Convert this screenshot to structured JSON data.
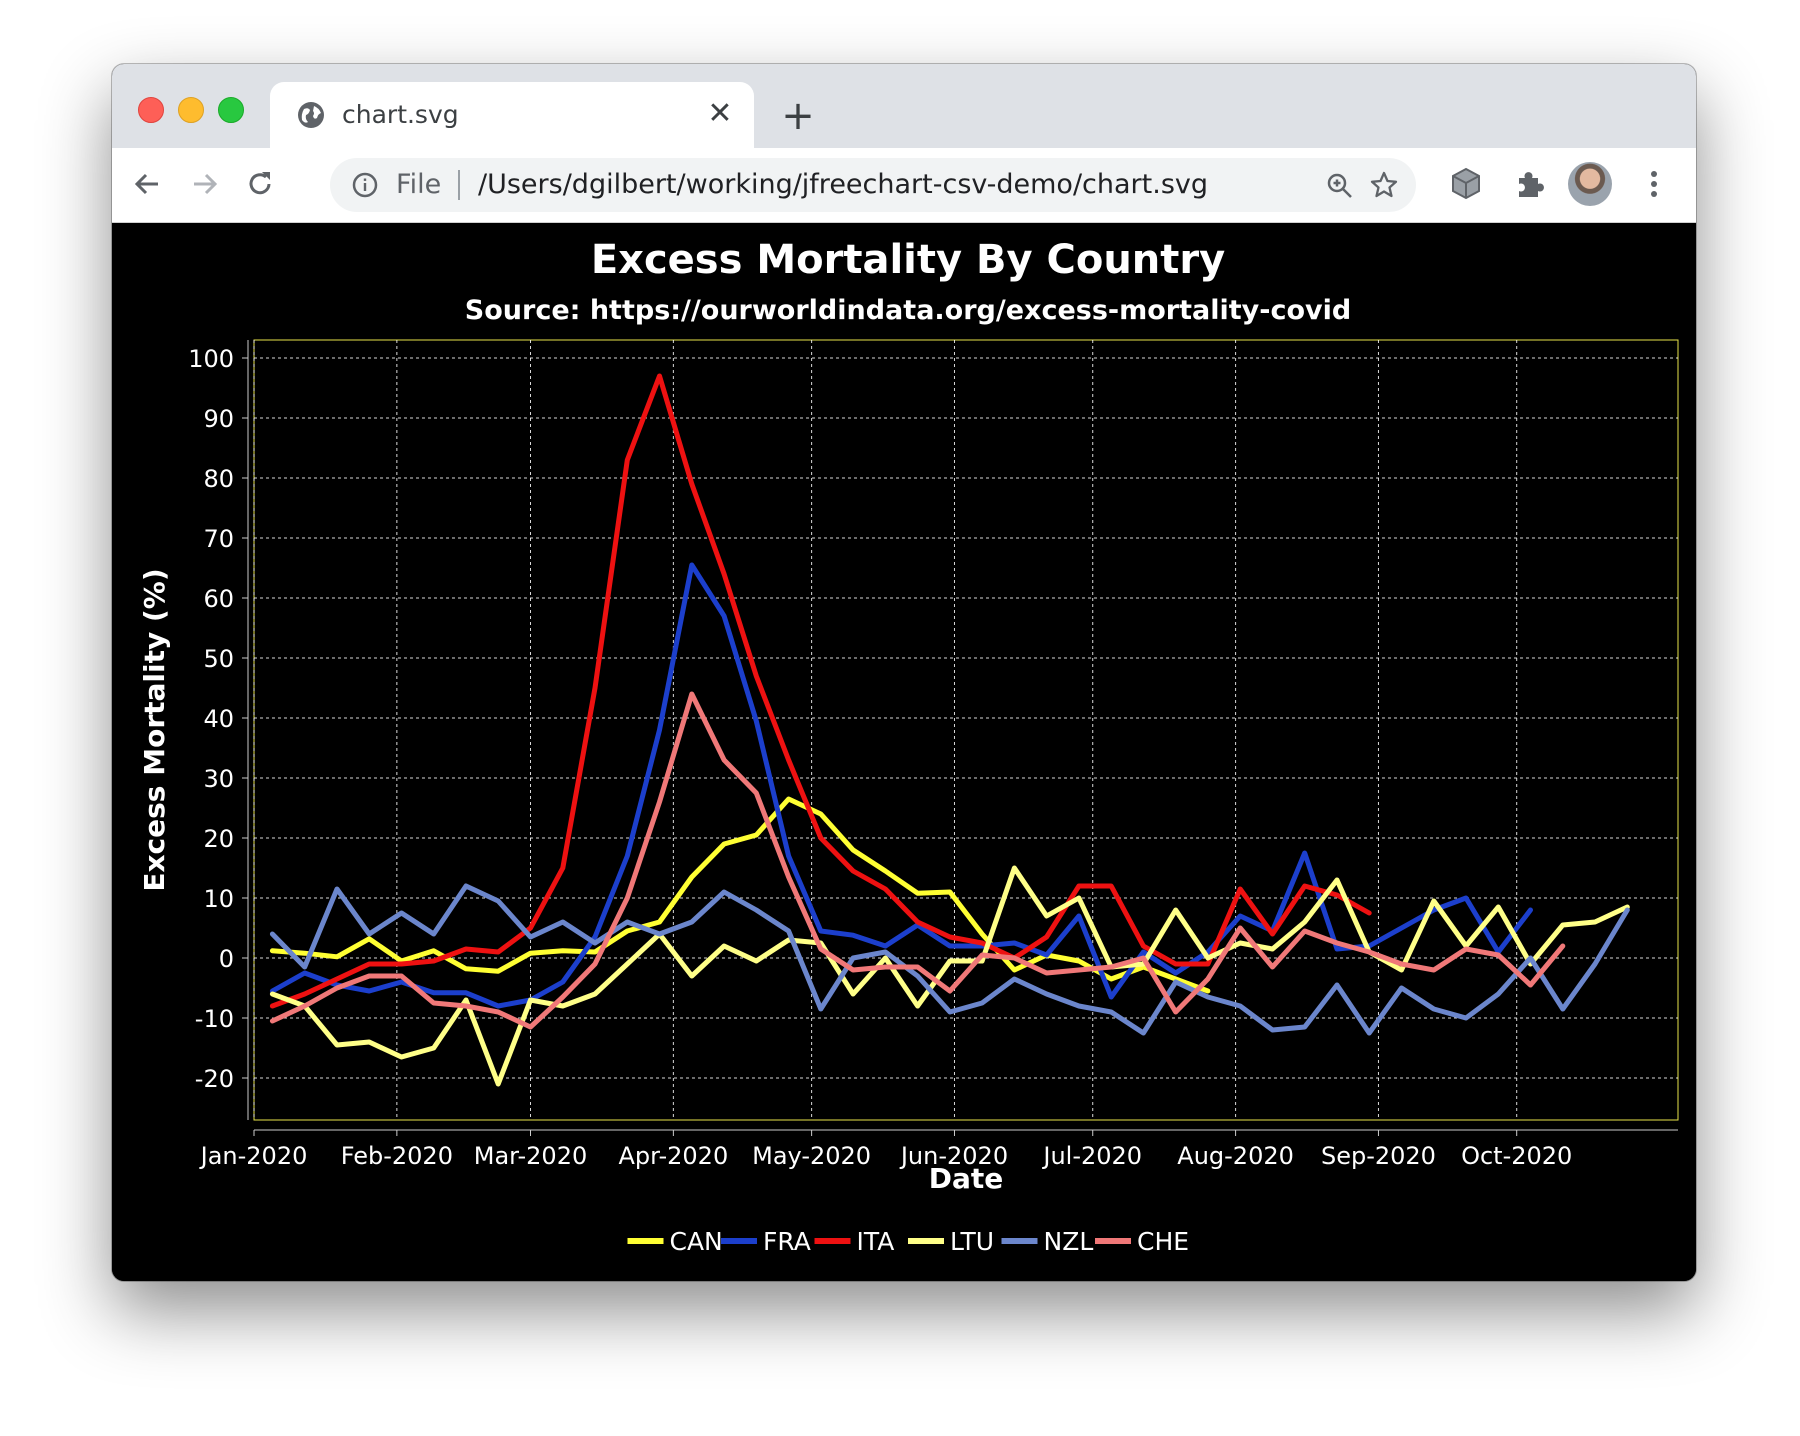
{
  "browser": {
    "tab_title": "chart.svg",
    "tab_close": "✕",
    "new_tab": "+",
    "file_label": "File",
    "url": "/Users/dgilbert/working/jfreechart-csv-demo/chart.svg",
    "icons": [
      "globe-icon",
      "back-icon",
      "forward-icon",
      "reload-icon",
      "info-icon",
      "zoom-icon",
      "star-icon",
      "cube-icon",
      "puzzle-icon",
      "avatar",
      "menu-icon"
    ]
  },
  "chart_data": {
    "type": "line",
    "title": "Excess Mortality By Country",
    "subtitle": "Source: https://ourworldindata.org/excess-mortality-covid",
    "xlabel": "Date",
    "ylabel": "Excess Mortality (%)",
    "ylim": [
      -27,
      103
    ],
    "yticks": [
      -20,
      -10,
      0,
      10,
      20,
      30,
      40,
      50,
      60,
      70,
      80,
      90,
      100
    ],
    "xlim": [
      "2020-01-01",
      "2020-11-05"
    ],
    "xticks": [
      {
        "date": "2020-01-01",
        "label": "Jan-2020"
      },
      {
        "date": "2020-02-01",
        "label": "Feb-2020"
      },
      {
        "date": "2020-03-01",
        "label": "Mar-2020"
      },
      {
        "date": "2020-04-01",
        "label": "Apr-2020"
      },
      {
        "date": "2020-05-01",
        "label": "May-2020"
      },
      {
        "date": "2020-06-01",
        "label": "Jun-2020"
      },
      {
        "date": "2020-07-01",
        "label": "Jul-2020"
      },
      {
        "date": "2020-08-01",
        "label": "Aug-2020"
      },
      {
        "date": "2020-09-01",
        "label": "Sep-2020"
      },
      {
        "date": "2020-10-01",
        "label": "Oct-2020"
      }
    ],
    "grid": true,
    "legend_position": "bottom",
    "background": "#000000",
    "gridline_color": "#ffffff",
    "plot_border_color": "#e8e34a",
    "series": [
      {
        "name": "CAN",
        "color": "#ffff33",
        "x": [
          "2020-01-05",
          "2020-01-12",
          "2020-01-19",
          "2020-01-26",
          "2020-02-02",
          "2020-02-09",
          "2020-02-16",
          "2020-02-23",
          "2020-03-01",
          "2020-03-08",
          "2020-03-15",
          "2020-03-22",
          "2020-03-29",
          "2020-04-05",
          "2020-04-12",
          "2020-04-19",
          "2020-04-26",
          "2020-05-03",
          "2020-05-10",
          "2020-05-17",
          "2020-05-24",
          "2020-05-31",
          "2020-06-07",
          "2020-06-14",
          "2020-06-21",
          "2020-06-28",
          "2020-07-05",
          "2020-07-12",
          "2020-07-19",
          "2020-07-26"
        ],
        "y": [
          1.2,
          0.8,
          0.2,
          3.2,
          -0.5,
          1.2,
          -1.8,
          -2.2,
          0.8,
          1.2,
          1.0,
          4.5,
          6.0,
          13.5,
          19.0,
          20.5,
          26.5,
          24.0,
          18.0,
          14.5,
          10.8,
          11.0,
          4.0,
          -2.0,
          0.5,
          -0.5,
          -3.5,
          -1.5,
          -3.5,
          -5.5
        ]
      },
      {
        "name": "FRA",
        "color": "#1c3fcc",
        "x": [
          "2020-01-05",
          "2020-01-12",
          "2020-01-19",
          "2020-01-26",
          "2020-02-02",
          "2020-02-09",
          "2020-02-16",
          "2020-02-23",
          "2020-03-01",
          "2020-03-08",
          "2020-03-15",
          "2020-03-22",
          "2020-03-29",
          "2020-04-05",
          "2020-04-12",
          "2020-04-19",
          "2020-04-26",
          "2020-05-03",
          "2020-05-10",
          "2020-05-17",
          "2020-05-24",
          "2020-05-31",
          "2020-06-07",
          "2020-06-14",
          "2020-06-21",
          "2020-06-28",
          "2020-07-05",
          "2020-07-12",
          "2020-07-19",
          "2020-07-26",
          "2020-08-02",
          "2020-08-09",
          "2020-08-16",
          "2020-08-23",
          "2020-08-30",
          "2020-09-06",
          "2020-09-13",
          "2020-09-20",
          "2020-09-27",
          "2020-10-04"
        ],
        "y": [
          -5.5,
          -2.5,
          -4.5,
          -5.5,
          -4.0,
          -5.8,
          -5.8,
          -8.0,
          -7.0,
          -4.0,
          3.5,
          17.0,
          38.0,
          65.5,
          57.0,
          39.5,
          17.0,
          4.5,
          3.8,
          2.0,
          5.5,
          2.0,
          2.0,
          2.5,
          0.5,
          7.0,
          -6.5,
          1.0,
          -2.5,
          1.0,
          7.0,
          4.5,
          17.5,
          1.5,
          2.0,
          5.0,
          8.0,
          10.0,
          1.0,
          8.0
        ]
      },
      {
        "name": "ITA",
        "color": "#ee1111",
        "x": [
          "2020-01-05",
          "2020-01-12",
          "2020-01-19",
          "2020-01-26",
          "2020-02-02",
          "2020-02-09",
          "2020-02-16",
          "2020-02-23",
          "2020-03-01",
          "2020-03-08",
          "2020-03-15",
          "2020-03-22",
          "2020-03-29",
          "2020-04-05",
          "2020-04-12",
          "2020-04-19",
          "2020-04-26",
          "2020-05-03",
          "2020-05-10",
          "2020-05-17",
          "2020-05-24",
          "2020-05-31",
          "2020-06-07",
          "2020-06-14",
          "2020-06-21",
          "2020-06-28",
          "2020-07-05",
          "2020-07-12",
          "2020-07-19",
          "2020-07-26",
          "2020-08-02",
          "2020-08-09",
          "2020-08-16",
          "2020-08-23",
          "2020-08-30"
        ],
        "y": [
          -8.0,
          -6.0,
          -3.5,
          -1.0,
          -1.0,
          -0.5,
          1.5,
          1.0,
          5.0,
          15.0,
          45.0,
          83.0,
          97.0,
          79.0,
          64.0,
          47.0,
          33.0,
          20.0,
          14.5,
          11.5,
          6.0,
          3.5,
          2.5,
          0.0,
          3.5,
          12.0,
          12.0,
          2.0,
          -1.0,
          -1.0,
          11.5,
          4.0,
          12.0,
          10.5,
          7.5
        ]
      },
      {
        "name": "LTU",
        "color": "#ffff88",
        "x": [
          "2020-01-05",
          "2020-01-12",
          "2020-01-19",
          "2020-01-26",
          "2020-02-02",
          "2020-02-09",
          "2020-02-16",
          "2020-02-23",
          "2020-03-01",
          "2020-03-08",
          "2020-03-15",
          "2020-03-22",
          "2020-03-29",
          "2020-04-05",
          "2020-04-12",
          "2020-04-19",
          "2020-04-26",
          "2020-05-03",
          "2020-05-10",
          "2020-05-17",
          "2020-05-24",
          "2020-05-31",
          "2020-06-07",
          "2020-06-14",
          "2020-06-21",
          "2020-06-28",
          "2020-07-05",
          "2020-07-12",
          "2020-07-19",
          "2020-07-26",
          "2020-08-02",
          "2020-08-09",
          "2020-08-16",
          "2020-08-23",
          "2020-08-30",
          "2020-09-06",
          "2020-09-13",
          "2020-09-20",
          "2020-09-27",
          "2020-10-04",
          "2020-10-11",
          "2020-10-18",
          "2020-10-25"
        ],
        "y": [
          -6.0,
          -8.0,
          -14.5,
          -14.0,
          -16.5,
          -15.0,
          -7.0,
          -21.0,
          -7.0,
          -8.0,
          -6.0,
          -1.0,
          4.0,
          -3.0,
          2.0,
          -0.5,
          3.0,
          2.5,
          -6.0,
          0.0,
          -8.0,
          -0.5,
          -0.5,
          15.0,
          7.0,
          10.0,
          -1.5,
          -1.0,
          8.0,
          0.0,
          2.5,
          1.5,
          6.0,
          13.0,
          1.0,
          -2.0,
          9.5,
          2.0,
          8.5,
          -1.0,
          5.5,
          6.0,
          8.5
        ]
      },
      {
        "name": "NZL",
        "color": "#6b86cc",
        "x": [
          "2020-01-05",
          "2020-01-12",
          "2020-01-19",
          "2020-01-26",
          "2020-02-02",
          "2020-02-09",
          "2020-02-16",
          "2020-02-23",
          "2020-03-01",
          "2020-03-08",
          "2020-03-15",
          "2020-03-22",
          "2020-03-29",
          "2020-04-05",
          "2020-04-12",
          "2020-04-19",
          "2020-04-26",
          "2020-05-03",
          "2020-05-10",
          "2020-05-17",
          "2020-05-24",
          "2020-05-31",
          "2020-06-07",
          "2020-06-14",
          "2020-06-21",
          "2020-06-28",
          "2020-07-05",
          "2020-07-12",
          "2020-07-19",
          "2020-07-26",
          "2020-08-02",
          "2020-08-09",
          "2020-08-16",
          "2020-08-23",
          "2020-08-30",
          "2020-09-06",
          "2020-09-13",
          "2020-09-20",
          "2020-09-27",
          "2020-10-04",
          "2020-10-11",
          "2020-10-18",
          "2020-10-25"
        ],
        "y": [
          4.0,
          -1.5,
          11.5,
          4.0,
          7.5,
          4.0,
          12.0,
          9.5,
          3.5,
          6.0,
          2.5,
          6.0,
          4.0,
          6.0,
          11.0,
          8.0,
          4.5,
          -8.5,
          0.0,
          1.0,
          -3.0,
          -9.0,
          -7.5,
          -3.5,
          -6.0,
          -8.0,
          -9.0,
          -12.5,
          -4.0,
          -6.5,
          -8.0,
          -12.0,
          -11.5,
          -4.5,
          -12.5,
          -5.0,
          -8.5,
          -10.0,
          -6.0,
          0.0,
          -8.5,
          -1.0,
          8.0
        ]
      },
      {
        "name": "CHE",
        "color": "#f07878",
        "x": [
          "2020-01-05",
          "2020-01-12",
          "2020-01-19",
          "2020-01-26",
          "2020-02-02",
          "2020-02-09",
          "2020-02-16",
          "2020-02-23",
          "2020-03-01",
          "2020-03-08",
          "2020-03-15",
          "2020-03-22",
          "2020-03-29",
          "2020-04-05",
          "2020-04-12",
          "2020-04-19",
          "2020-04-26",
          "2020-05-03",
          "2020-05-10",
          "2020-05-17",
          "2020-05-24",
          "2020-05-31",
          "2020-06-07",
          "2020-06-14",
          "2020-06-21",
          "2020-06-28",
          "2020-07-05",
          "2020-07-12",
          "2020-07-19",
          "2020-07-26",
          "2020-08-02",
          "2020-08-09",
          "2020-08-16",
          "2020-08-23",
          "2020-08-30",
          "2020-09-06",
          "2020-09-13",
          "2020-09-20",
          "2020-09-27",
          "2020-10-04",
          "2020-10-11"
        ],
        "y": [
          -10.5,
          -8.0,
          -5.0,
          -3.0,
          -3.0,
          -7.5,
          -8.0,
          -9.0,
          -11.5,
          -6.5,
          -1.0,
          10.0,
          26.0,
          44.0,
          33.0,
          27.5,
          13.5,
          1.5,
          -2.0,
          -1.5,
          -1.5,
          -5.5,
          0.5,
          0.0,
          -2.5,
          -2.0,
          -1.5,
          0.0,
          -9.0,
          -3.5,
          5.0,
          -1.5,
          4.5,
          2.5,
          1.0,
          -1.0,
          -2.0,
          1.5,
          0.5,
          -4.5,
          2.0
        ]
      }
    ]
  }
}
